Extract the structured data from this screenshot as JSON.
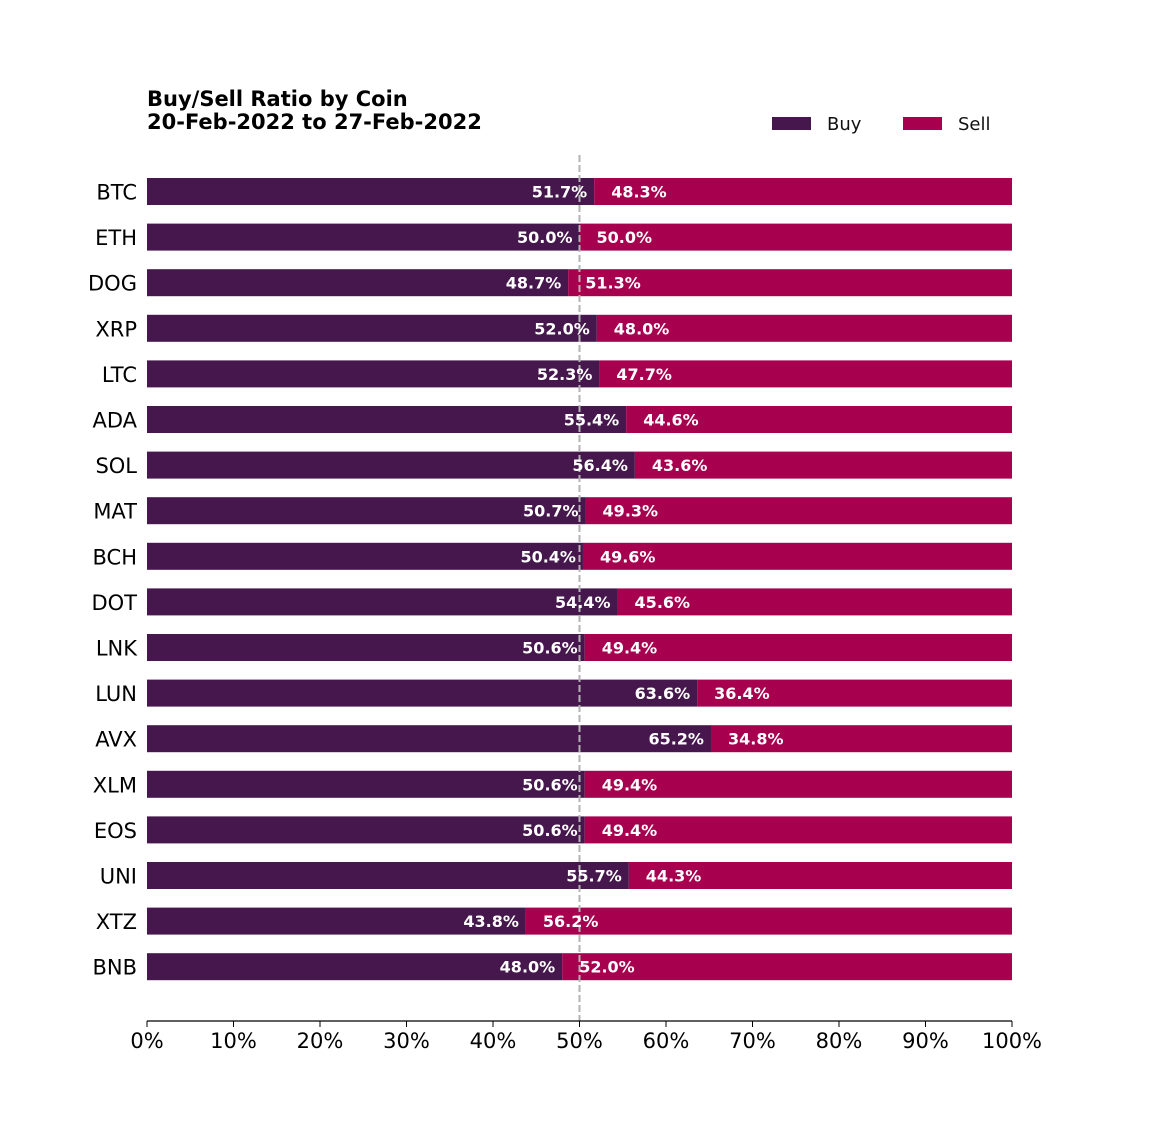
{
  "chart_data": {
    "type": "bar",
    "orientation": "horizontal",
    "stacked": true,
    "title": "Buy/Sell Ratio by Coin",
    "subtitle": "20-Feb-2022 to 27-Feb-2022",
    "xlabel": "",
    "ylabel": "",
    "xlim": [
      0,
      100
    ],
    "x_ticks": [
      "0%",
      "10%",
      "20%",
      "30%",
      "40%",
      "50%",
      "60%",
      "70%",
      "80%",
      "90%",
      "100%"
    ],
    "reference_line": {
      "x": 50,
      "style": "dashed",
      "color": "#b3b3b3"
    },
    "grid": false,
    "legend": {
      "placement": "top-right",
      "entries": [
        "Buy",
        "Sell"
      ]
    },
    "categories": [
      "BTC",
      "ETH",
      "DOG",
      "XRP",
      "LTC",
      "ADA",
      "SOL",
      "MAT",
      "BCH",
      "DOT",
      "LNK",
      "LUN",
      "AVX",
      "XLM",
      "EOS",
      "UNI",
      "XTZ",
      "BNB"
    ],
    "series": [
      {
        "name": "Buy",
        "color": "#45174c",
        "values": [
          51.7,
          50.0,
          48.7,
          52.0,
          52.3,
          55.4,
          56.4,
          50.7,
          50.4,
          54.4,
          50.6,
          63.6,
          65.2,
          50.6,
          50.6,
          55.7,
          43.8,
          48.0
        ],
        "labels": [
          "51.7%",
          "50.0%",
          "48.7%",
          "52.0%",
          "52.3%",
          "55.4%",
          "56.4%",
          "50.7%",
          "50.4%",
          "54.4%",
          "50.6%",
          "63.6%",
          "65.2%",
          "50.6%",
          "50.6%",
          "55.7%",
          "43.8%",
          "48.0%"
        ]
      },
      {
        "name": "Sell",
        "color": "#a6004f",
        "values": [
          48.3,
          50.0,
          51.3,
          48.0,
          47.7,
          44.6,
          43.6,
          49.3,
          49.6,
          45.6,
          49.4,
          36.4,
          34.8,
          49.4,
          49.4,
          44.3,
          56.2,
          52.0
        ],
        "labels": [
          "48.3%",
          "50.0%",
          "51.3%",
          "48.0%",
          "47.7%",
          "44.6%",
          "43.6%",
          "49.3%",
          "49.6%",
          "45.6%",
          "49.4%",
          "36.4%",
          "34.8%",
          "49.4%",
          "49.4%",
          "44.3%",
          "56.2%",
          "52.0%"
        ]
      }
    ]
  }
}
